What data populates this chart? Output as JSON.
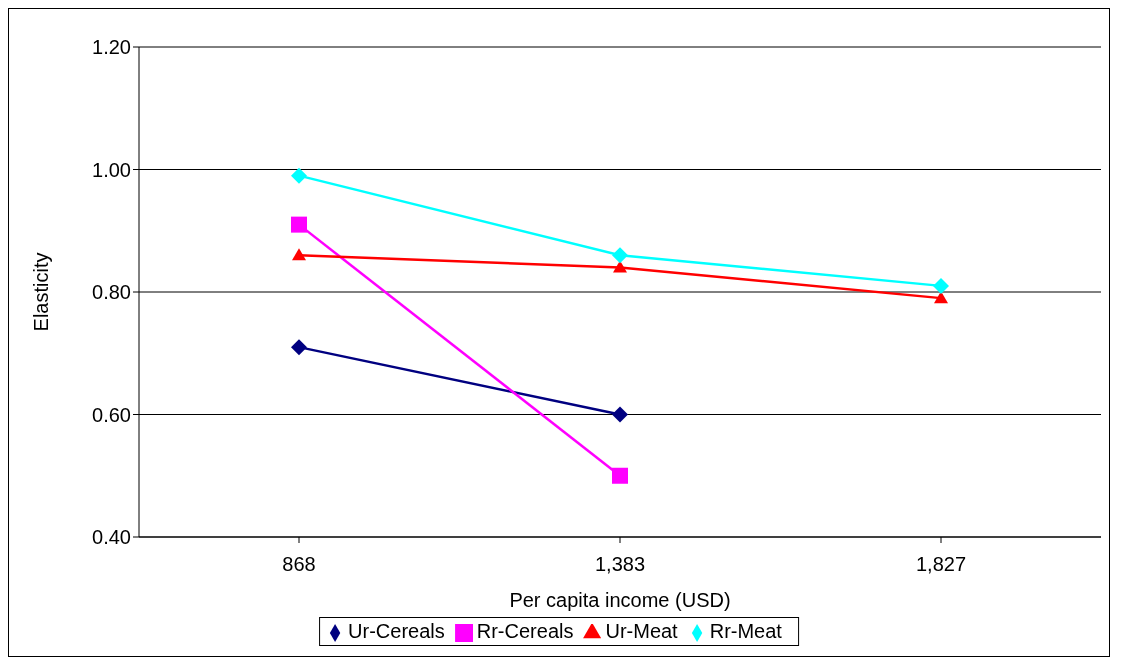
{
  "chart_data": {
    "type": "line",
    "xlabel": "Per capita income (USD)",
    "ylabel": "Elasticity",
    "categories": [
      "868",
      "1,383",
      "1,827"
    ],
    "series": [
      {
        "name": "Ur-Cereals",
        "color": "#000080",
        "marker": "diamond",
        "values": [
          0.71,
          0.6,
          null
        ]
      },
      {
        "name": "Rr-Cereals",
        "color": "#ff00ff",
        "marker": "square",
        "values": [
          0.91,
          0.5,
          null
        ]
      },
      {
        "name": "Ur-Meat",
        "color": "#ff0000",
        "marker": "triangle",
        "values": [
          0.86,
          0.84,
          0.79
        ]
      },
      {
        "name": "Rr-Meat",
        "color": "#00ffff",
        "marker": "diamond",
        "values": [
          0.99,
          0.86,
          0.81
        ]
      }
    ],
    "ylim": [
      0.4,
      1.2
    ],
    "yticks": [
      {
        "value": 0.4,
        "label": "0.40"
      },
      {
        "value": 0.6,
        "label": "0.60"
      },
      {
        "value": 0.8,
        "label": "0.80"
      },
      {
        "value": 1.0,
        "label": "1.00"
      },
      {
        "value": 1.2,
        "label": "1.20"
      }
    ],
    "grid": "y",
    "legend": "bottom",
    "line_style": "solid"
  }
}
